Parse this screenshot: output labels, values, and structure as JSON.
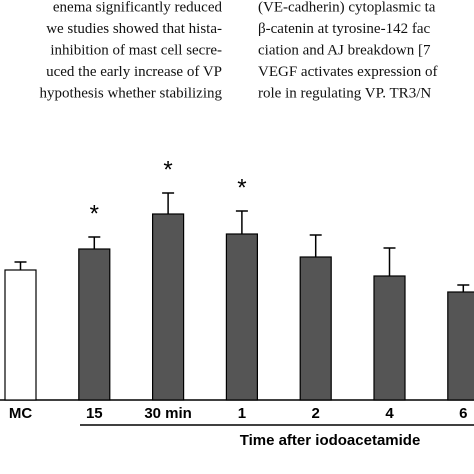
{
  "page_text": {
    "left_column": [
      "enema significantly reduced",
      "we studies showed that hista-",
      "inhibition of mast cell secre-",
      "uced the early increase of VP",
      "hypothesis whether stabilizing"
    ],
    "right_column": [
      "(VE-cadherin) cytoplasmic ta",
      "β-catenin at tyrosine-142 fac",
      "ciation and AJ breakdown [7",
      "VEGF activates expression of",
      "role in regulating VP. TR3/N"
    ]
  },
  "chart_data": {
    "type": "bar",
    "xlabel": "Time after iodoacetamide",
    "categories": [
      "MC",
      "15",
      "30 min",
      "1",
      "2",
      "4",
      "6"
    ],
    "values": [
      130,
      151,
      186,
      166,
      143,
      124,
      108
    ],
    "errors": [
      8,
      12,
      21,
      23,
      22,
      28,
      7
    ],
    "colors": [
      "#ffffff",
      "#555555",
      "#555555",
      "#555555",
      "#555555",
      "#555555",
      "#555555"
    ],
    "ylim": [
      0,
      200
    ],
    "annotations": [
      {
        "text": "*",
        "category": "15"
      },
      {
        "text": "*",
        "category": "30 min"
      },
      {
        "text": "*",
        "category": "1"
      }
    ]
  }
}
